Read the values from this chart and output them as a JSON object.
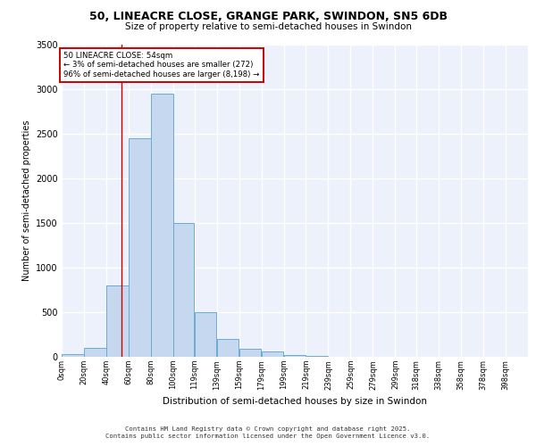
{
  "title_line1": "50, LINEACRE CLOSE, GRANGE PARK, SWINDON, SN5 6DB",
  "title_line2": "Size of property relative to semi-detached houses in Swindon",
  "xlabel": "Distribution of semi-detached houses by size in Swindon",
  "ylabel": "Number of semi-detached properties",
  "annotation_title": "50 LINEACRE CLOSE: 54sqm",
  "annotation_line2": "← 3% of semi-detached houses are smaller (272)",
  "annotation_line3": "96% of semi-detached houses are larger (8,198) →",
  "footer_line1": "Contains HM Land Registry data © Crown copyright and database right 2025.",
  "footer_line2": "Contains public sector information licensed under the Open Government Licence v3.0.",
  "bar_color": "#c5d8f0",
  "bar_edge_color": "#6aabd2",
  "red_line_x": 54,
  "bar_lefts": [
    0,
    20,
    40,
    60,
    80,
    100,
    119,
    139,
    159,
    179,
    199,
    219,
    239,
    259,
    279,
    299,
    318,
    338,
    358,
    378
  ],
  "bar_widths": [
    20,
    20,
    20,
    20,
    20,
    19,
    20,
    20,
    20,
    20,
    20,
    20,
    20,
    20,
    20,
    19,
    20,
    20,
    20,
    20
  ],
  "bar_heights": [
    30,
    100,
    800,
    2450,
    2950,
    1500,
    500,
    200,
    90,
    60,
    20,
    10,
    5,
    2,
    1,
    0,
    0,
    0,
    0,
    0
  ],
  "categories": [
    "0sqm",
    "20sqm",
    "40sqm",
    "60sqm",
    "80sqm",
    "100sqm",
    "119sqm",
    "139sqm",
    "159sqm",
    "179sqm",
    "199sqm",
    "219sqm",
    "239sqm",
    "259sqm",
    "279sqm",
    "299sqm",
    "318sqm",
    "338sqm",
    "358sqm",
    "378sqm",
    "398sqm"
  ],
  "xtick_pos": [
    0,
    20,
    40,
    60,
    80,
    100,
    119,
    139,
    159,
    179,
    199,
    219,
    239,
    259,
    279,
    299,
    318,
    338,
    358,
    378,
    398
  ],
  "ylim": [
    0,
    3500
  ],
  "yticks": [
    0,
    500,
    1000,
    1500,
    2000,
    2500,
    3000,
    3500
  ],
  "xlim": [
    0,
    418
  ],
  "background_color": "#edf1fb",
  "grid_color": "#ffffff",
  "annotation_box_facecolor": "#ffffff",
  "annotation_box_edgecolor": "#cc0000",
  "red_line_color": "#cc0000"
}
